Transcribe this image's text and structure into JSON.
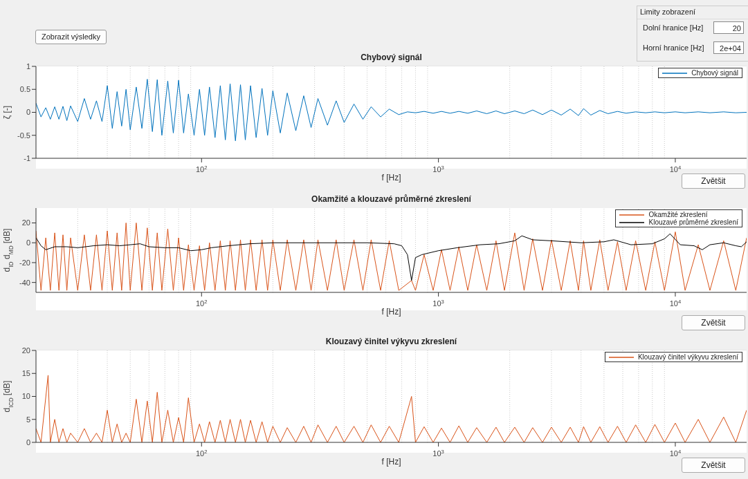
{
  "chart_data": [
    {
      "type": "line",
      "title": "Chybový signál",
      "xlabel": "f [Hz]",
      "ylabel": "ζ [-]",
      "log": "x",
      "grid": true,
      "legend": "top right",
      "marker": "none",
      "line_style": "solid",
      "xlim": [
        20,
        20000
      ],
      "xticks": [
        {
          "value": 100,
          "label": "10$^{2}$"
        },
        {
          "value": 1000,
          "label": "10$^{3}$"
        },
        {
          "value": 10000,
          "label": "10$^{4}$"
        }
      ],
      "ylim": [
        -1,
        1
      ],
      "yticks": [
        -1,
        -0.5,
        0,
        0.5,
        1
      ],
      "annotations": [
        "Zobrazit výsledky",
        "Limity zobrazení",
        "Dolní hranice [Hz]",
        "20",
        "Horní hranice [Hz]",
        "2e+04",
        "Zvětšit"
      ],
      "x": [
        20,
        21,
        22,
        23,
        24,
        25,
        26,
        27,
        28,
        30,
        32,
        34,
        36,
        38,
        40,
        42,
        44,
        46,
        48,
        50,
        53,
        56,
        59,
        62,
        65,
        68,
        72,
        76,
        80,
        84,
        88,
        93,
        98,
        103,
        108,
        114,
        120,
        126,
        132,
        139,
        146,
        153,
        161,
        170,
        180,
        190,
        200,
        215,
        230,
        250,
        270,
        290,
        310,
        340,
        370,
        400,
        440,
        480,
        520,
        570,
        620,
        680,
        740,
        800,
        870,
        950,
        1030,
        1120,
        1220,
        1330,
        1450,
        1600,
        1750,
        1900,
        2100,
        2300,
        2500,
        2750,
        3000,
        3300,
        3600,
        3900,
        4100,
        4400,
        4800,
        5200,
        5700,
        6200,
        6800,
        7500,
        8200,
        9000,
        10000,
        11000,
        12500,
        14000,
        16000,
        18000,
        20000
      ],
      "series": [
        {
          "name": "Chybový signál",
          "color": "#0072bd",
          "values": [
            0.2,
            -0.1,
            0.1,
            -0.15,
            0.12,
            -0.15,
            0.13,
            -0.18,
            0.14,
            -0.2,
            0.3,
            -0.15,
            0.25,
            -0.2,
            0.58,
            -0.35,
            0.45,
            -0.3,
            0.5,
            -0.38,
            0.55,
            -0.35,
            0.72,
            -0.42,
            0.71,
            -0.5,
            0.68,
            -0.45,
            0.7,
            -0.45,
            0.4,
            -0.5,
            0.5,
            -0.5,
            0.55,
            -0.55,
            0.58,
            -0.6,
            0.62,
            -0.62,
            0.6,
            -0.6,
            0.58,
            -0.55,
            0.52,
            -0.5,
            0.47,
            -0.45,
            0.42,
            -0.4,
            0.36,
            -0.33,
            0.3,
            -0.28,
            0.25,
            -0.22,
            0.18,
            -0.15,
            0.12,
            -0.1,
            0.07,
            -0.05,
            0.01,
            -0.01,
            0.02,
            -0.02,
            0.02,
            -0.02,
            0.02,
            -0.02,
            0.03,
            -0.03,
            0.03,
            -0.03,
            0.03,
            -0.03,
            0.05,
            -0.05,
            0.05,
            -0.06,
            0.07,
            -0.07,
            0.08,
            -0.06,
            0.04,
            -0.03,
            0.02,
            -0.02,
            0.01,
            -0.01,
            0.01,
            -0.01,
            0.01,
            -0.01,
            0.01,
            -0.01,
            0.01,
            -0.01,
            0
          ]
        }
      ]
    },
    {
      "type": "line",
      "title": "Okamžité a klouzavé průměrné zkreslení",
      "xlabel": "f [Hz]",
      "ylabel": "d$_{ID}$ d$_{MD}$ [dB]",
      "log": "x",
      "grid": true,
      "legend": "top right",
      "marker": "none",
      "line_style": "solid",
      "xlim": [
        20,
        20000
      ],
      "xticks": [
        {
          "value": 100,
          "label": "10$^{2}$"
        },
        {
          "value": 1000,
          "label": "10$^{3}$"
        },
        {
          "value": 10000,
          "label": "10$^{4}$"
        }
      ],
      "ylim": [
        -50,
        35
      ],
      "yticks": [
        -40,
        -20,
        0,
        20
      ],
      "annotations": [
        "Zvětšit"
      ],
      "x": [
        20,
        21,
        22,
        23,
        24,
        25,
        26,
        27,
        28,
        30,
        32,
        34,
        36,
        38,
        40,
        42,
        44,
        46,
        48,
        50,
        53,
        56,
        59,
        62,
        65,
        68,
        72,
        76,
        80,
        84,
        88,
        93,
        98,
        103,
        108,
        114,
        120,
        126,
        132,
        139,
        146,
        153,
        161,
        170,
        180,
        190,
        200,
        215,
        230,
        250,
        270,
        290,
        310,
        340,
        370,
        400,
        440,
        480,
        520,
        570,
        620,
        680,
        770,
        800,
        870,
        950,
        1030,
        1120,
        1220,
        1330,
        1450,
        1600,
        1750,
        1900,
        2100,
        2300,
        2500,
        2750,
        3000,
        3300,
        3600,
        3900,
        4100,
        4400,
        4800,
        5200,
        5700,
        6200,
        6800,
        7500,
        8200,
        9000,
        10000,
        11000,
        12500,
        14000,
        16000,
        18000,
        20000
      ],
      "series": [
        {
          "name": "Okamžité zkreslení",
          "color": "#d95319",
          "values": [
            12,
            -48,
            5,
            -48,
            10,
            -48,
            8,
            -48,
            5,
            -48,
            8,
            -48,
            8,
            -48,
            12,
            -48,
            10,
            -48,
            20,
            -48,
            20,
            -48,
            15,
            -48,
            10,
            -48,
            14,
            -48,
            5,
            -48,
            -2,
            -48,
            -3,
            -48,
            0,
            -48,
            2,
            -48,
            2,
            -48,
            3,
            -48,
            3,
            -48,
            3,
            -48,
            3,
            -48,
            3,
            -48,
            3,
            -48,
            3,
            -48,
            3,
            -48,
            3,
            -48,
            3,
            -48,
            2,
            -48,
            -38,
            -48,
            -12,
            -48,
            -7,
            -48,
            -4,
            -48,
            -2,
            -48,
            2,
            -48,
            10,
            -48,
            4,
            -48,
            3,
            -48,
            2,
            -48,
            2,
            -48,
            3,
            -48,
            1,
            -48,
            2,
            -48,
            1,
            -48,
            11,
            -48,
            -2,
            -48,
            2,
            -48,
            5
          ]
        },
        {
          "name": "Klouzavé průměrné zkreslení",
          "color": "#000000",
          "x": [
            20,
            21,
            22,
            24,
            27,
            30,
            35,
            40,
            45,
            50,
            55,
            60,
            70,
            80,
            90,
            100,
            110,
            130,
            160,
            200,
            300,
            500,
            650,
            700,
            740,
            770,
            800,
            850,
            1000,
            1200,
            1500,
            1800,
            2100,
            2250,
            2500,
            3000,
            4000,
            5000,
            5500,
            6500,
            8000,
            9000,
            9500,
            10500,
            12000,
            13000,
            14000,
            16000,
            18000,
            19000,
            20000
          ],
          "values": [
            5,
            -3,
            -7,
            -4,
            -4,
            -5,
            -3,
            -2,
            -3,
            -2,
            -1,
            -4,
            -5,
            -5,
            -8,
            -7,
            -5,
            -3,
            -1,
            0,
            0,
            0,
            -1,
            -3,
            -12,
            -38,
            -15,
            -12,
            -8,
            -5,
            -2,
            -1,
            2,
            7,
            3,
            2,
            0,
            1,
            3,
            -2,
            -1,
            4,
            9,
            -2,
            -3,
            -7,
            -2,
            0,
            -3,
            -4,
            1
          ]
        }
      ]
    },
    {
      "type": "line",
      "title": "Klouzavý činitel výkyvu zkreslení",
      "xlabel": "f [Hz]",
      "ylabel": "d$_{ICD}$ [dB]",
      "log": "x",
      "grid": true,
      "legend": "top right",
      "marker": "none",
      "line_style": "solid",
      "xlim": [
        20,
        20000
      ],
      "xticks": [
        {
          "value": 100,
          "label": "10$^{2}$"
        },
        {
          "value": 1000,
          "label": "10$^{3}$"
        },
        {
          "value": 10000,
          "label": "10$^{4}$"
        }
      ],
      "ylim": [
        0,
        20
      ],
      "yticks": [
        0,
        5,
        10,
        15,
        20
      ],
      "annotations": [
        "Zvětšit"
      ],
      "x": [
        20,
        21,
        22.5,
        23,
        24,
        25,
        26,
        27,
        28,
        30,
        32,
        34,
        36,
        38,
        40,
        42,
        44,
        46,
        48,
        50,
        53,
        56,
        59,
        62,
        65,
        68,
        72,
        76,
        80,
        84,
        88,
        93,
        98,
        103,
        108,
        114,
        120,
        126,
        132,
        139,
        146,
        153,
        161,
        170,
        180,
        190,
        200,
        215,
        230,
        250,
        270,
        290,
        310,
        340,
        370,
        400,
        440,
        480,
        520,
        570,
        620,
        680,
        770,
        800,
        870,
        950,
        1030,
        1120,
        1220,
        1330,
        1450,
        1600,
        1750,
        1900,
        2100,
        2300,
        2500,
        2750,
        3000,
        3300,
        3600,
        3900,
        4100,
        4400,
        4800,
        5200,
        5700,
        6200,
        6800,
        7500,
        8200,
        9000,
        10000,
        11000,
        12500,
        14000,
        16000,
        18000,
        20000
      ],
      "series": [
        {
          "name": "Klouzavý činitel výkyvu zkreslení",
          "color": "#d95319",
          "values": [
            3,
            0,
            14.6,
            0,
            5,
            0,
            3,
            0,
            2,
            0,
            3,
            0,
            2,
            0,
            7,
            0,
            4,
            0,
            2,
            0,
            9.4,
            0,
            9,
            0,
            10.9,
            0,
            7,
            0,
            5.4,
            0,
            9.7,
            0,
            4,
            0,
            4.5,
            0,
            4.8,
            0,
            5,
            0,
            5,
            0,
            4.8,
            0,
            4.5,
            0,
            3.5,
            0,
            3.2,
            0,
            3.5,
            0,
            3.8,
            0,
            3.5,
            0,
            3.5,
            0,
            3.8,
            0,
            3.5,
            0,
            10,
            0,
            3.4,
            0,
            3.1,
            0,
            3.6,
            0,
            3.2,
            0,
            3.3,
            0,
            3.3,
            0,
            3.2,
            0,
            3.3,
            0,
            3.3,
            0,
            3.4,
            0,
            3.4,
            0,
            3.5,
            0,
            3.8,
            0,
            3.9,
            0,
            4.2,
            0,
            5,
            0,
            5.5,
            0,
            7
          ]
        }
      ]
    }
  ]
}
